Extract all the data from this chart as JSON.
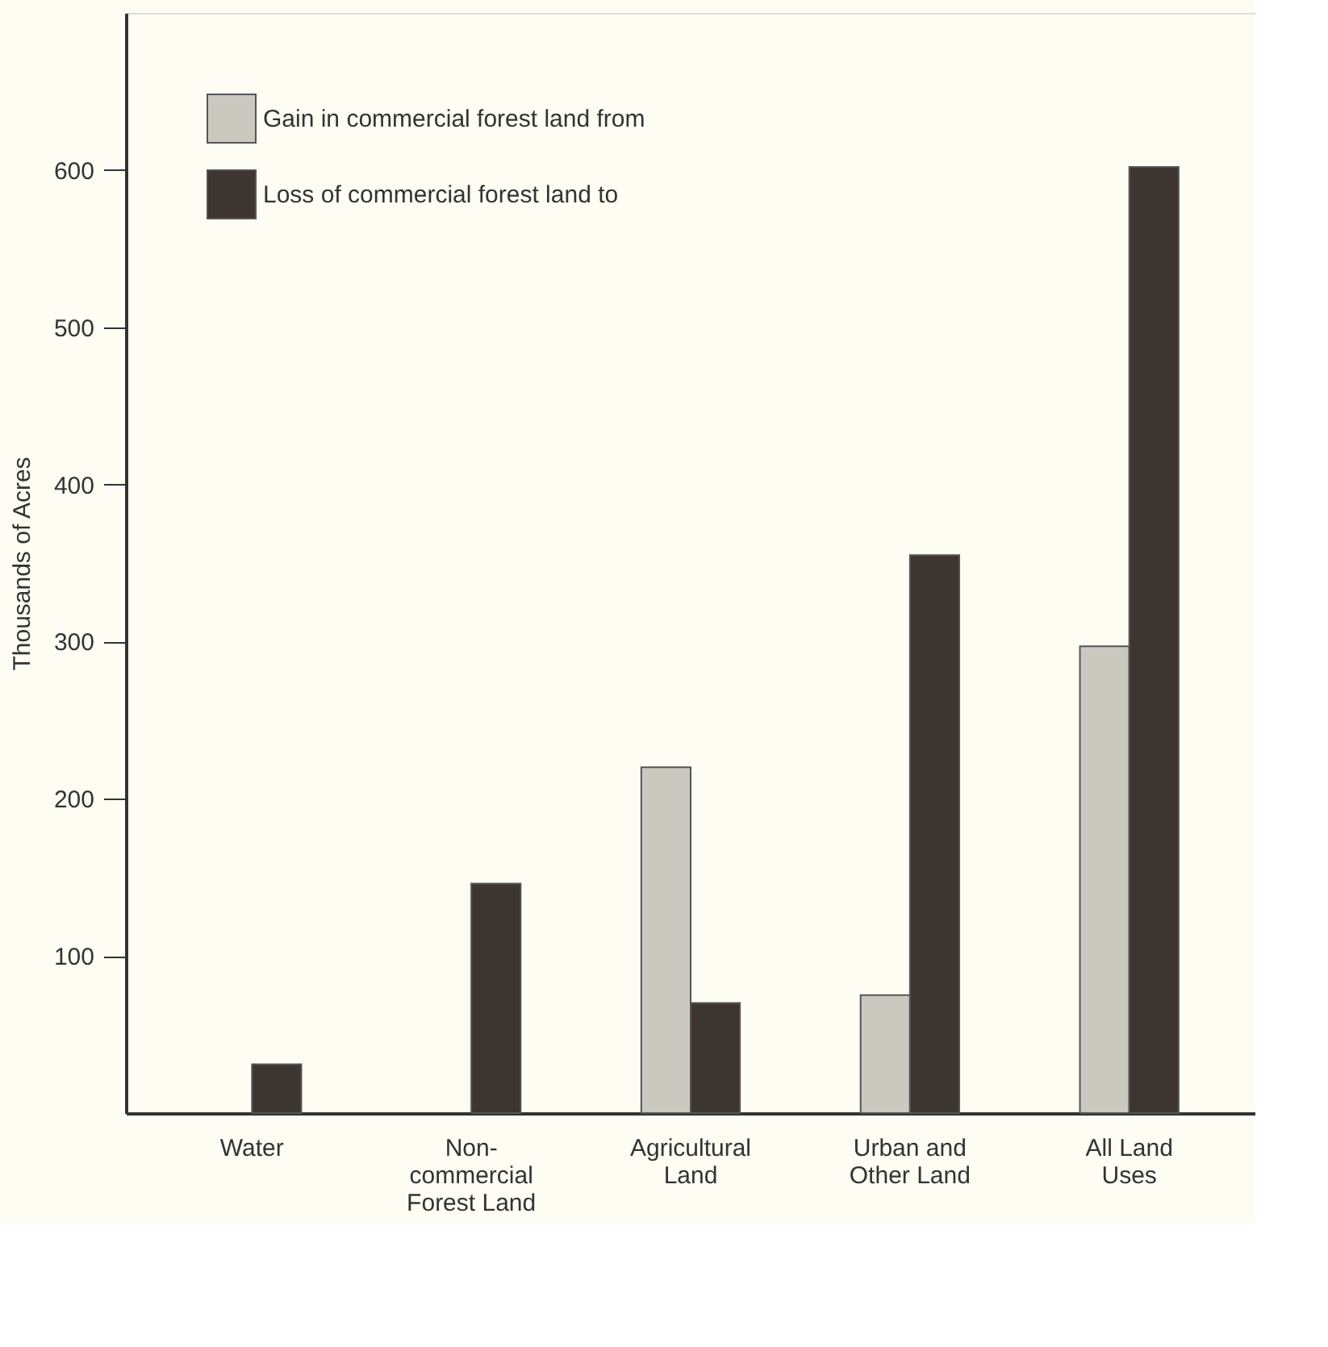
{
  "chart_data": {
    "type": "bar",
    "ylabel": "Thousands of Acres",
    "categories": [
      "Water",
      "Non-\ncommercial\nForest Land",
      "Agricultural\nLand",
      "Urban and\nOther Land",
      "All Land\nUses"
    ],
    "series": [
      {
        "name": "Gain in commercial forest land from",
        "color": "#c9c9c0",
        "values": [
          null,
          null,
          220,
          75,
          297
        ]
      },
      {
        "name": "Loss of commercial forest land to",
        "color": "#3d3530",
        "values": [
          31,
          146,
          70,
          355,
          602
        ]
      }
    ],
    "ylim": [
      0,
      700
    ],
    "yticks": [
      100,
      200,
      300,
      400,
      500,
      600
    ],
    "grid": false,
    "legend": "top left"
  }
}
